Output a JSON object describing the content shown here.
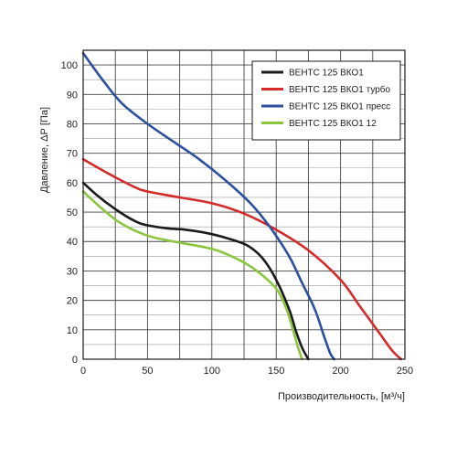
{
  "chart_data": {
    "type": "line",
    "xlabel": "Производительность, [м³/ч]",
    "ylabel": "Давление, ΔР [Па]",
    "xlim": [
      0,
      250
    ],
    "ylim": [
      0,
      105
    ],
    "x_ticks": [
      "0",
      "50",
      "100",
      "150",
      "200",
      "250"
    ],
    "y_ticks": [
      "0",
      "10",
      "20",
      "30",
      "40",
      "50",
      "60",
      "70",
      "80",
      "90",
      "100"
    ],
    "grid": true,
    "legend_position": "top-right",
    "series": [
      {
        "name": "ВЕНТС 125 ВКО1",
        "color": "#1a1a1a",
        "points": [
          [
            0,
            60
          ],
          [
            10,
            56
          ],
          [
            25,
            51
          ],
          [
            40,
            47
          ],
          [
            50,
            45.5
          ],
          [
            65,
            44.5
          ],
          [
            80,
            44
          ],
          [
            100,
            42.5
          ],
          [
            120,
            40
          ],
          [
            130,
            38
          ],
          [
            140,
            34
          ],
          [
            150,
            27
          ],
          [
            160,
            17
          ],
          [
            165,
            10
          ],
          [
            170,
            4
          ],
          [
            175,
            0
          ]
        ]
      },
      {
        "name": "ВЕНТС 125 ВКО1 турбо",
        "color": "#d42a2a",
        "points": [
          [
            0,
            68
          ],
          [
            20,
            63
          ],
          [
            40,
            58.5
          ],
          [
            50,
            57
          ],
          [
            75,
            55
          ],
          [
            100,
            53
          ],
          [
            125,
            49.5
          ],
          [
            150,
            44
          ],
          [
            175,
            37
          ],
          [
            200,
            27
          ],
          [
            215,
            18
          ],
          [
            230,
            9
          ],
          [
            240,
            3
          ],
          [
            247,
            0
          ]
        ]
      },
      {
        "name": "ВЕНТС 125 ВКО1 пресс",
        "color": "#2c4f9e",
        "points": [
          [
            0,
            104
          ],
          [
            15,
            95
          ],
          [
            30,
            87
          ],
          [
            50,
            80
          ],
          [
            70,
            74
          ],
          [
            90,
            68
          ],
          [
            110,
            61
          ],
          [
            130,
            53
          ],
          [
            145,
            45
          ],
          [
            160,
            35
          ],
          [
            170,
            26
          ],
          [
            180,
            17
          ],
          [
            187,
            8
          ],
          [
            192,
            2
          ],
          [
            195,
            0
          ]
        ]
      },
      {
        "name": "ВЕНТС 125 ВКО1 12",
        "color": "#8cc63f",
        "points": [
          [
            0,
            57
          ],
          [
            15,
            51
          ],
          [
            30,
            46
          ],
          [
            50,
            42
          ],
          [
            70,
            40
          ],
          [
            100,
            37.5
          ],
          [
            120,
            34
          ],
          [
            135,
            30
          ],
          [
            150,
            24
          ],
          [
            158,
            17
          ],
          [
            163,
            10
          ],
          [
            167,
            4
          ],
          [
            170,
            0
          ]
        ]
      }
    ]
  }
}
